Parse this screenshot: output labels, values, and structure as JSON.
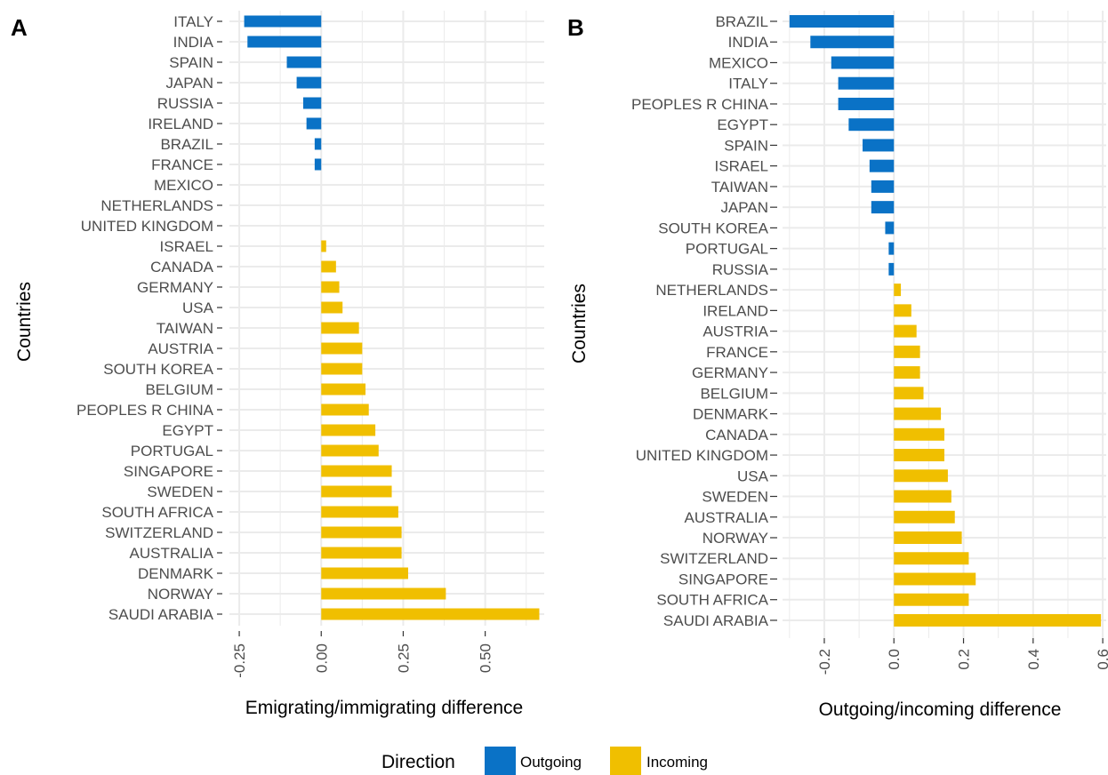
{
  "colors": {
    "outgoing": "#0a72c6",
    "incoming": "#f0bf00",
    "grid": "#ebebeb",
    "tick": "#4d4d4d"
  },
  "legend": {
    "title": "Direction",
    "items": [
      {
        "label": "Outgoing",
        "color": "#0a72c6"
      },
      {
        "label": "Incoming",
        "color": "#f0bf00"
      }
    ]
  },
  "chart_data": [
    {
      "type": "bar",
      "orientation": "horizontal",
      "panel_label": "A",
      "xlabel": "Emigrating/immigrating difference",
      "ylabel": "Countries",
      "xlim": [
        -0.28,
        0.68
      ],
      "xticks": [
        -0.25,
        0.0,
        0.25,
        0.5
      ],
      "xtick_labels": [
        "-0.25",
        "0.00",
        "0.25",
        "0.50"
      ],
      "grid": true,
      "categories": [
        "ITALY",
        "INDIA",
        "SPAIN",
        "JAPAN",
        "RUSSIA",
        "IRELAND",
        "BRAZIL",
        "FRANCE",
        "MEXICO",
        "NETHERLANDS",
        "UNITED KINGDOM",
        "ISRAEL",
        "CANADA",
        "GERMANY",
        "USA",
        "TAIWAN",
        "AUSTRIA",
        "SOUTH KOREA",
        "BELGIUM",
        "PEOPLES R CHINA",
        "EGYPT",
        "PORTUGAL",
        "SINGAPORE",
        "SWEDEN",
        "SOUTH AFRICA",
        "SWITZERLAND",
        "AUSTRALIA",
        "DENMARK",
        "NORWAY",
        "SAUDI ARABIA"
      ],
      "values": [
        -0.235,
        -0.225,
        -0.105,
        -0.075,
        -0.055,
        -0.045,
        -0.02,
        -0.02,
        0.0,
        0.0,
        0.0,
        0.015,
        0.045,
        0.055,
        0.065,
        0.115,
        0.125,
        0.125,
        0.135,
        0.145,
        0.165,
        0.175,
        0.215,
        0.215,
        0.235,
        0.245,
        0.245,
        0.265,
        0.38,
        0.665
      ]
    },
    {
      "type": "bar",
      "orientation": "horizontal",
      "panel_label": "B",
      "xlabel": "Outgoing/incoming difference",
      "ylabel": "Countries",
      "xlim": [
        -0.32,
        0.61
      ],
      "xticks": [
        -0.2,
        0.0,
        0.2,
        0.4,
        0.6
      ],
      "xtick_labels": [
        "-0.2",
        "0.0",
        "0.2",
        "0.4",
        "0.6"
      ],
      "grid": true,
      "categories": [
        "BRAZIL",
        "INDIA",
        "MEXICO",
        "ITALY",
        "PEOPLES R CHINA",
        "EGYPT",
        "SPAIN",
        "ISRAEL",
        "TAIWAN",
        "JAPAN",
        "SOUTH KOREA",
        "PORTUGAL",
        "RUSSIA",
        "NETHERLANDS",
        "IRELAND",
        "AUSTRIA",
        "FRANCE",
        "GERMANY",
        "BELGIUM",
        "DENMARK",
        "CANADA",
        "UNITED KINGDOM",
        "USA",
        "SWEDEN",
        "AUSTRALIA",
        "NORWAY",
        "SWITZERLAND",
        "SINGAPORE",
        "SOUTH AFRICA",
        "SAUDI ARABIA"
      ],
      "values": [
        -0.3,
        -0.24,
        -0.18,
        -0.16,
        -0.16,
        -0.13,
        -0.09,
        -0.07,
        -0.065,
        -0.065,
        -0.025,
        -0.015,
        -0.015,
        0.02,
        0.05,
        0.065,
        0.075,
        0.075,
        0.085,
        0.135,
        0.145,
        0.145,
        0.155,
        0.165,
        0.175,
        0.195,
        0.215,
        0.235,
        0.215,
        0.595
      ]
    }
  ]
}
